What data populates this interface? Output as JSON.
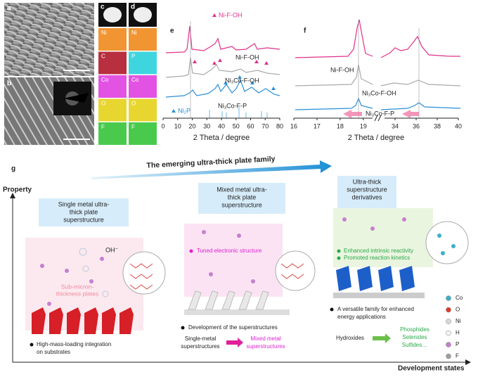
{
  "panel_labels": {
    "a": "a",
    "b": "b",
    "c": "c",
    "d": "d",
    "e": "e",
    "f": "f",
    "g": "g"
  },
  "eds": {
    "c": [
      "Ni",
      "C",
      "Co",
      "O",
      "F"
    ],
    "d": [
      "Ni",
      "P",
      "Co",
      "O",
      "F"
    ]
  },
  "xrd_e": {
    "legend": "Ni-F-OH",
    "traces": [
      "Ni-F-OH",
      "Ni₃Co-F-OH",
      "Ni₃Co-F-P"
    ],
    "reference": "Ni₂P",
    "xlabel": "2 Theta / degree",
    "xlim": [
      0,
      80
    ],
    "xticks": [
      0,
      10,
      20,
      30,
      40,
      50,
      60,
      70,
      80
    ]
  },
  "xrd_f": {
    "traces": [
      "Ni-F-OH",
      "Ni₃Co-F-OH",
      "Ni₃Co-F-P"
    ],
    "xlabel": "2 Theta / degree",
    "xlim_left": [
      16,
      19.4
    ],
    "xticks_left": [
      16,
      17,
      18,
      19
    ],
    "xlim_right": [
      33,
      40
    ],
    "xticks_right": [
      34,
      36,
      38,
      40
    ]
  },
  "schematic": {
    "arrow_title": "The emerging ultra-thick plate family",
    "y_axis": "Property",
    "x_axis": "Development states",
    "stage1": {
      "title": [
        "Single metal ultra-",
        "thick plate",
        "superstructure"
      ],
      "ion": "OH⁻",
      "plates": [
        "Sub-micron-",
        "thickness plates"
      ],
      "bullet": [
        "High-mass-loading integration",
        "on substrates"
      ]
    },
    "stage2": {
      "title": [
        "Mixed metal ultra-",
        "thick plate",
        "superstructure"
      ],
      "feature": "Tuned electronic structure",
      "bullet": "Development of the superstructures",
      "from": [
        "Single-metal",
        "superstructures"
      ],
      "to": [
        "Mixed metal",
        "superstructures"
      ]
    },
    "stage3": {
      "title": [
        "Ultra-thick",
        "superstructure",
        "derivatives"
      ],
      "features": [
        "Enhanced intrinsic reactivity",
        "Promoted reaction kinetics"
      ],
      "bullet": [
        "A versatile family for enhanced",
        "energy applications"
      ],
      "from": "Hydroxides",
      "to": [
        "Phosphides",
        "Selenides",
        "Sulfides…"
      ]
    },
    "legend": [
      "Co",
      "O",
      "Ni",
      "H",
      "P",
      "F"
    ]
  }
}
